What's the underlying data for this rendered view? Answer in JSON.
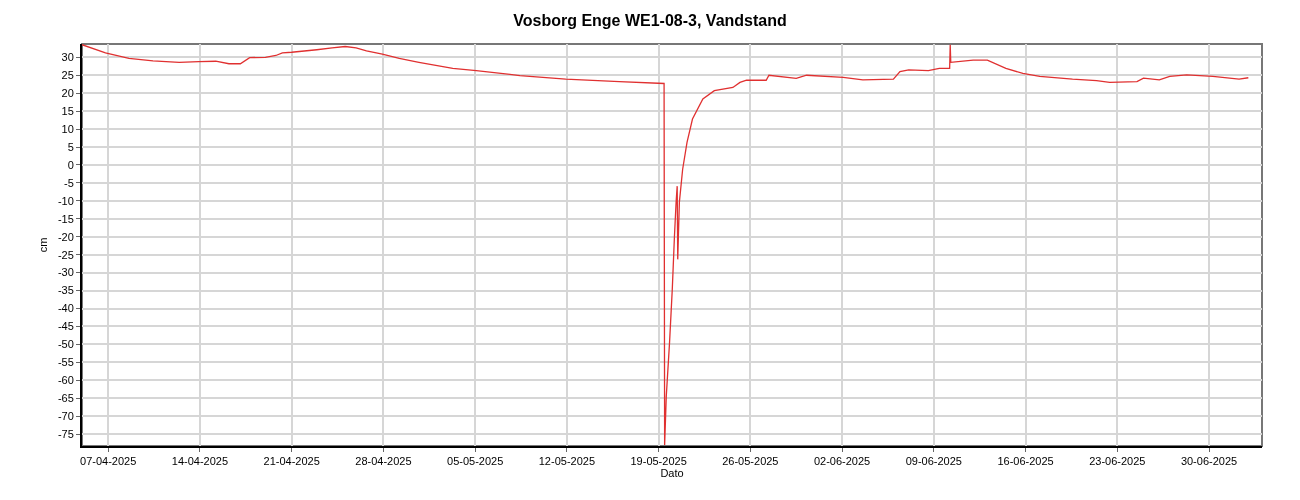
{
  "chart_data": {
    "type": "line",
    "title": "Vosborg Enge WE1-08-3, Vandstand",
    "xlabel": "Dato",
    "ylabel": "cm",
    "x": [
      "2025-04-05T00:00",
      "2025-04-06T19:00",
      "2025-04-08T14:00",
      "2025-04-10T10:00",
      "2025-04-12T10:00",
      "2025-04-13T22:00",
      "2025-04-15T05:00",
      "2025-04-16T05:00",
      "2025-04-17T02:00",
      "2025-04-17T19:00",
      "2025-04-19T00:00",
      "2025-04-19T19:00",
      "2025-04-20T07:00",
      "2025-04-21T00:00",
      "2025-04-22T22:00",
      "2025-04-24T02:00",
      "2025-04-25T02:00",
      "2025-04-25T22:00",
      "2025-04-26T17:00",
      "2025-04-27T22:00",
      "2025-04-29T05:00",
      "2025-04-30T17:00",
      "2025-05-03T07:00",
      "2025-05-05T02:00",
      "2025-05-08T10:00",
      "2025-05-11T22:00",
      "2025-05-16T00:00",
      "2025-05-19T10:00",
      "2025-05-19T11:00",
      "2025-05-19T14:00",
      "2025-05-19T20:00",
      "2025-05-20T01:00",
      "2025-05-20T05:00",
      "2025-05-20T08:00",
      "2025-05-20T10:00",
      "2025-05-20T11:00",
      "2025-05-20T14:00",
      "2025-05-20T20:00",
      "2025-05-21T04:00",
      "2025-05-21T14:00",
      "2025-05-22T09:00",
      "2025-05-23T06:00",
      "2025-05-24T16:00",
      "2025-05-25T05:00",
      "2025-05-25T17:00",
      "2025-05-27T05:00",
      "2025-05-27T10:00",
      "2025-05-29T12:00",
      "2025-05-30T07:00",
      "2025-06-02T02:00",
      "2025-06-03T14:00",
      "2025-06-05T22:00",
      "2025-06-06T10:00",
      "2025-06-07T02:00",
      "2025-06-08T14:00",
      "2025-06-09T10:00",
      "2025-06-10T05:00",
      "2025-06-10T06:00",
      "2025-06-10T07:00",
      "2025-06-12T00:00",
      "2025-06-13T02:00",
      "2025-06-14T12:00",
      "2025-06-15T19:00",
      "2025-06-17T02:00",
      "2025-06-19T14:00",
      "2025-06-21T10:00",
      "2025-06-22T10:00",
      "2025-06-24T12:00",
      "2025-06-25T00:00",
      "2025-06-26T05:00",
      "2025-06-27T00:00",
      "2025-06-28T07:00",
      "2025-06-30T07:00",
      "2025-07-02T07:00",
      "2025-07-03T00:00"
    ],
    "series": [
      {
        "color": "#e03030",
        "values": [
          33.5,
          31.2,
          29.7,
          29.0,
          28.6,
          28.8,
          28.9,
          28.2,
          28.2,
          29.9,
          30.0,
          30.5,
          31.2,
          31.4,
          32.1,
          32.6,
          33.0,
          32.6,
          31.8,
          30.9,
          29.7,
          28.6,
          26.9,
          26.3,
          24.9,
          23.9,
          23.2,
          22.7,
          -78,
          -64.5,
          -49.5,
          -34.7,
          -19.8,
          -10.4,
          -5.9,
          -26.3,
          -10.4,
          -1.2,
          6.3,
          12.8,
          18.4,
          20.7,
          21.6,
          23.0,
          23.6,
          23.6,
          25.0,
          24.1,
          25.0,
          24.4,
          23.7,
          23.9,
          26.0,
          26.5,
          26.3,
          26.9,
          26.9,
          33.5,
          28.6,
          29.2,
          29.2,
          26.9,
          25.5,
          24.7,
          23.9,
          23.5,
          23.0,
          23.2,
          24.2,
          23.7,
          24.7,
          25.1,
          24.7,
          23.9,
          24.3
        ]
      }
    ],
    "xlim": [
      "2025-04-05T00:00",
      "2025-07-04T01:00"
    ],
    "xticks": [
      {
        "value": "2025-04-07",
        "label": "07-04-2025"
      },
      {
        "value": "2025-04-14",
        "label": "14-04-2025"
      },
      {
        "value": "2025-04-21",
        "label": "21-04-2025"
      },
      {
        "value": "2025-04-28",
        "label": "28-04-2025"
      },
      {
        "value": "2025-05-05",
        "label": "05-05-2025"
      },
      {
        "value": "2025-05-12",
        "label": "12-05-2025"
      },
      {
        "value": "2025-05-19",
        "label": "19-05-2025"
      },
      {
        "value": "2025-05-26",
        "label": "26-05-2025"
      },
      {
        "value": "2025-06-02",
        "label": "02-06-2025"
      },
      {
        "value": "2025-06-09",
        "label": "09-06-2025"
      },
      {
        "value": "2025-06-16",
        "label": "16-06-2025"
      },
      {
        "value": "2025-06-23",
        "label": "23-06-2025"
      },
      {
        "value": "2025-06-30",
        "label": "30-06-2025"
      }
    ],
    "ylim": [
      -78.3,
      33.7
    ],
    "yticks": [
      -75,
      -70,
      -65,
      -60,
      -55,
      -50,
      -45,
      -40,
      -35,
      -30,
      -25,
      -20,
      -15,
      -10,
      -5,
      0,
      5,
      10,
      15,
      20,
      25,
      30
    ],
    "grid": true,
    "marker": "none",
    "line_style": "solid"
  }
}
